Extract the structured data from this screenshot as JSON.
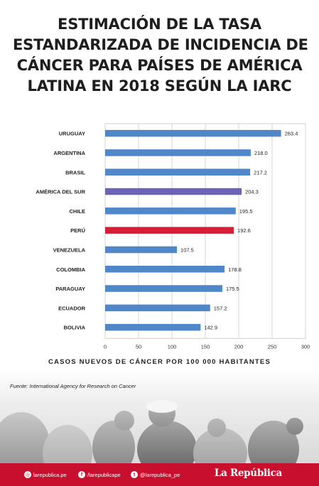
{
  "title_lines": [
    "ESTIMACIÓN DE LA TASA",
    "ESTANDARIZADA DE INCIDENCIA DE",
    "CÁNCER PARA PAÍSES DE AMÉRICA",
    "LATINA EN 2018 SEGÚN LA IARC"
  ],
  "source": "Fuente: International Agency for Research on Cancer",
  "footer": {
    "instagram": "larepublica.pe",
    "facebook": "/larepublicape",
    "twitter": "@larepublica_pe",
    "brand": "La República"
  },
  "colors": {
    "default_bar": "#4f87c8",
    "highlight_region": "#6b63b5",
    "highlight_peru": "#d41f37",
    "footer": "#c8102e"
  },
  "chart_data": {
    "type": "bar",
    "orientation": "horizontal",
    "categories": [
      "URUGUAY",
      "ARGENTINA",
      "BRASIL",
      "AMÉRICA DEL SUR",
      "CHILE",
      "PERÚ",
      "VENEZUELA",
      "COLOMBIA",
      "PARAGUAY",
      "ECUADOR",
      "BOLIVIA"
    ],
    "values": [
      263.4,
      218.0,
      217.2,
      204.3,
      195.5,
      192.6,
      107.5,
      178.8,
      175.5,
      157.2,
      142.9
    ],
    "value_labels": [
      "263.4",
      "218.0",
      "217.2",
      "204.3",
      "195.5",
      "192.6",
      "107.5",
      "178.8",
      "175.5",
      "157.2",
      "142.9"
    ],
    "highlight": {
      "AMÉRICA DEL SUR": "region",
      "PERÚ": "peru"
    },
    "xlabel": "CASOS NUEVOS DE CÁNCER POR 100 000 HABITANTES",
    "xlim": [
      0,
      300
    ],
    "xticks": [
      0,
      50,
      100,
      150,
      200,
      250,
      300
    ],
    "grid": true
  }
}
